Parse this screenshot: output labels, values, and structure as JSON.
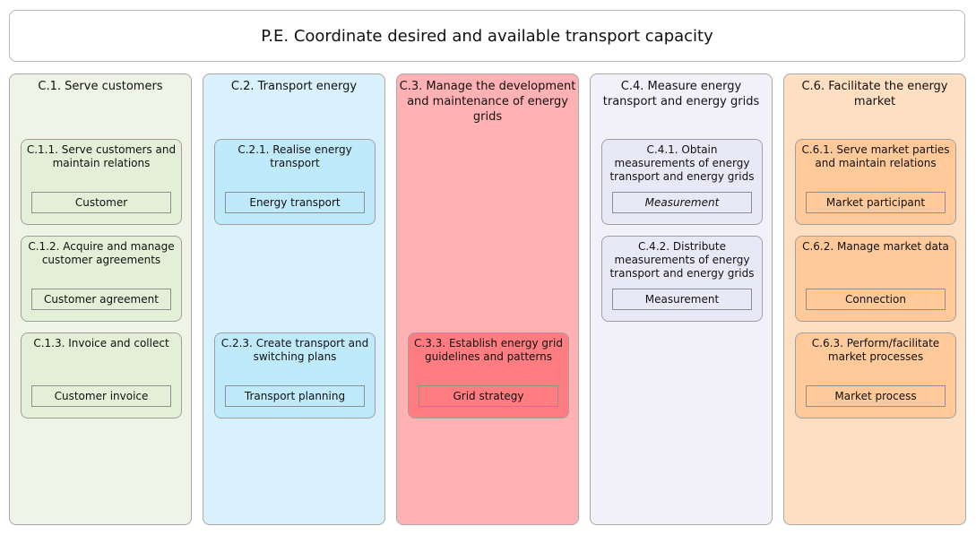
{
  "title": "P.E. Coordinate desired and available transport capacity",
  "columns": [
    {
      "title": "C.1. Serve customers",
      "capabilities": [
        {
          "title": "C.1.1. Serve customers and maintain relations",
          "object": "Customer"
        },
        {
          "title": "C.1.2. Acquire and manage customer agreements",
          "object": "Customer agreement"
        },
        {
          "title": "C.1.3. Invoice and collect",
          "object": "Customer invoice"
        }
      ]
    },
    {
      "title": "C.2. Transport energy",
      "capabilities": [
        {
          "title": "C.2.1. Realise energy transport",
          "object": "Energy transport"
        },
        {
          "title": "C.2.3. Create transport and switching plans",
          "object": "Transport planning"
        }
      ]
    },
    {
      "title": "C.3. Manage the development and maintenance of energy grids",
      "capabilities": [
        {
          "title": "C.3.3. Establish energy grid guidelines and patterns",
          "object": "Grid strategy"
        }
      ]
    },
    {
      "title": "C.4. Measure energy transport and energy grids",
      "capabilities": [
        {
          "title": "C.4.1. Obtain measurements of energy transport and energy grids",
          "object": "Measurement"
        },
        {
          "title": "C.4.2. Distribute measurements of energy transport and energy grids",
          "object": "Measurement"
        }
      ]
    },
    {
      "title": "C.6. Facilitate the energy market",
      "capabilities": [
        {
          "title": "C.6.1. Serve market parties and maintain relations",
          "object": "Market participant"
        },
        {
          "title": "C.6.2. Manage market data",
          "object": "Connection"
        },
        {
          "title": "C.6.3. Perform/facilitate market processes",
          "object": "Market process"
        }
      ]
    }
  ],
  "colors": {
    "c1_bg": "#eff4e7",
    "c1_cap": "#e3efd6",
    "c2_bg": "#d9f1fc",
    "c2_cap": "#bfeafc",
    "c3_bg": "#ffb1b3",
    "c3_cap": "#ff7c80",
    "c4_bg": "#f2f1fa",
    "c4_cap": "#e9e8f7",
    "c6_bg": "#ffdfc2",
    "c6_cap": "#ffc999"
  }
}
